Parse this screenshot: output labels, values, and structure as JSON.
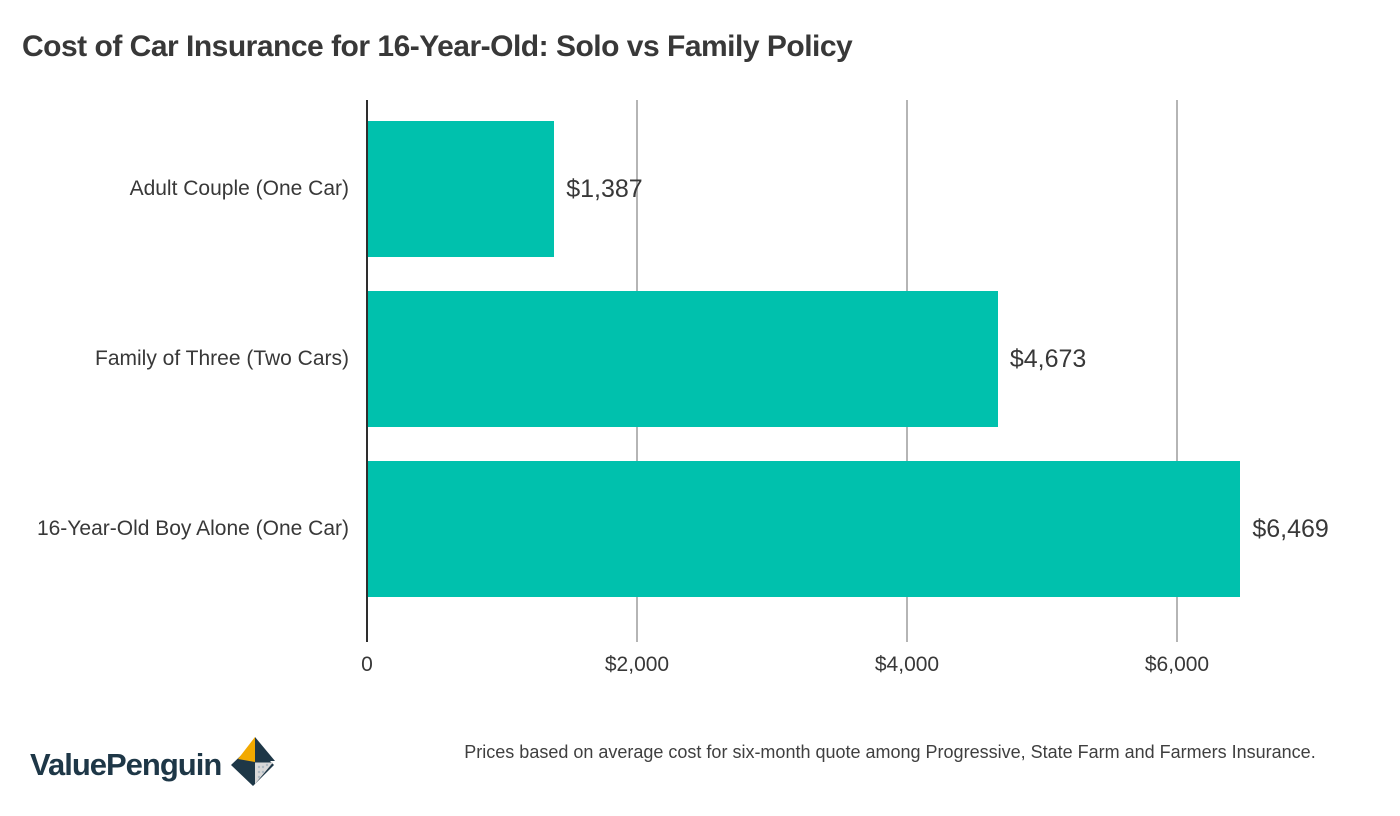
{
  "title": "Cost of Car Insurance for 16-Year-Old: Solo vs Family Policy",
  "chart_data": {
    "type": "bar",
    "orientation": "horizontal",
    "title": "Cost of Car Insurance for 16-Year-Old: Solo vs Family Policy",
    "categories": [
      "Adult Couple (One Car)",
      "Family of Three (Two Cars)",
      "16-Year-Old Boy Alone (One Car)"
    ],
    "values": [
      1387,
      4673,
      6469
    ],
    "value_labels": [
      "$1,387",
      "$4,673",
      "$6,469"
    ],
    "x_ticks": [
      {
        "value": 0,
        "label": "0"
      },
      {
        "value": 2000,
        "label": "$2,000"
      },
      {
        "value": 4000,
        "label": "$4,000"
      },
      {
        "value": 6000,
        "label": "$6,000"
      }
    ],
    "xlim": [
      0,
      7000
    ],
    "grid": "vertical-gridlines-at-ticks",
    "legend": "none",
    "colors": {
      "bar": "#00C1AD",
      "gridline": "#B5B5B5",
      "zero_axis": "#2E2E2E",
      "text": "#383838"
    }
  },
  "footer": {
    "note": "Prices based on average cost for six-month quote among Progressive, State Farm and Farmers Insurance.",
    "logo": {
      "text": "ValuePenguin",
      "colors": {
        "navy": "#1E3747",
        "yellow": "#F2A900",
        "gray": "#D8D8D8",
        "dot": "#AEBAC3"
      }
    }
  }
}
